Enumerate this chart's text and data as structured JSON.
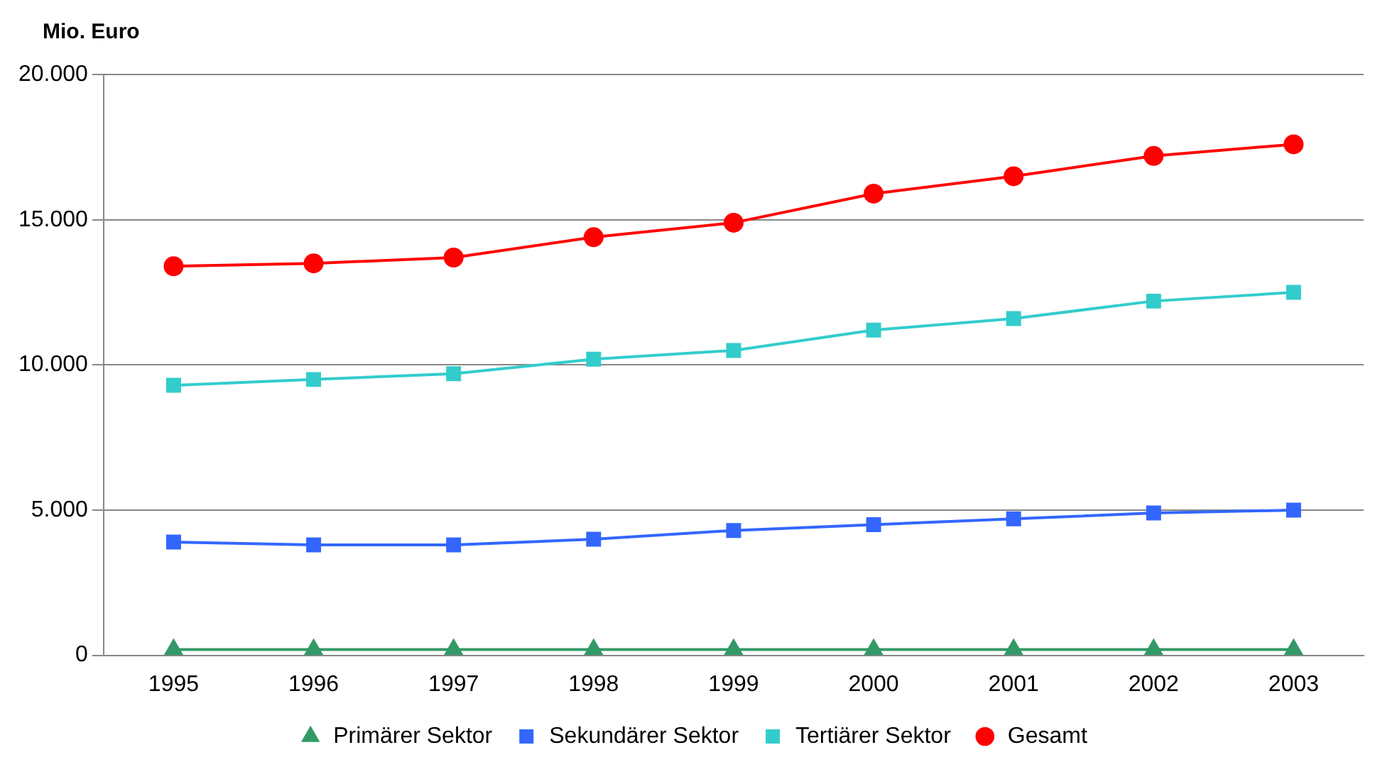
{
  "chart_data": {
    "type": "line",
    "ylabel": "Mio. Euro",
    "categories": [
      "1995",
      "1996",
      "1997",
      "1998",
      "1999",
      "2000",
      "2001",
      "2002",
      "2003"
    ],
    "series": [
      {
        "name": "Primärer Sektor",
        "color": "#339966",
        "marker": "triangle",
        "values": [
          200,
          200,
          200,
          200,
          200,
          200,
          200,
          200,
          200
        ]
      },
      {
        "name": "Sekundärer Sektor",
        "color": "#3366ff",
        "marker": "square",
        "values": [
          3900,
          3800,
          3800,
          4000,
          4300,
          4500,
          4700,
          4900,
          5000
        ]
      },
      {
        "name": "Tertiärer Sektor",
        "color": "#33cccc",
        "marker": "square",
        "values": [
          9300,
          9500,
          9700,
          10200,
          10500,
          11200,
          11600,
          12200,
          12500
        ]
      },
      {
        "name": "Gesamt",
        "color": "#ff0000",
        "marker": "circle",
        "values": [
          13400,
          13500,
          13700,
          14400,
          14900,
          15900,
          16500,
          17200,
          17600
        ]
      }
    ],
    "ylim": [
      0,
      20000
    ],
    "yticks": [
      {
        "value": 0,
        "label": "0"
      },
      {
        "value": 5000,
        "label": "5.000"
      },
      {
        "value": 10000,
        "label": "10.000"
      },
      {
        "value": 15000,
        "label": "15.000"
      },
      {
        "value": 20000,
        "label": "20.000"
      }
    ],
    "grid": "y",
    "legend": "bottom"
  }
}
